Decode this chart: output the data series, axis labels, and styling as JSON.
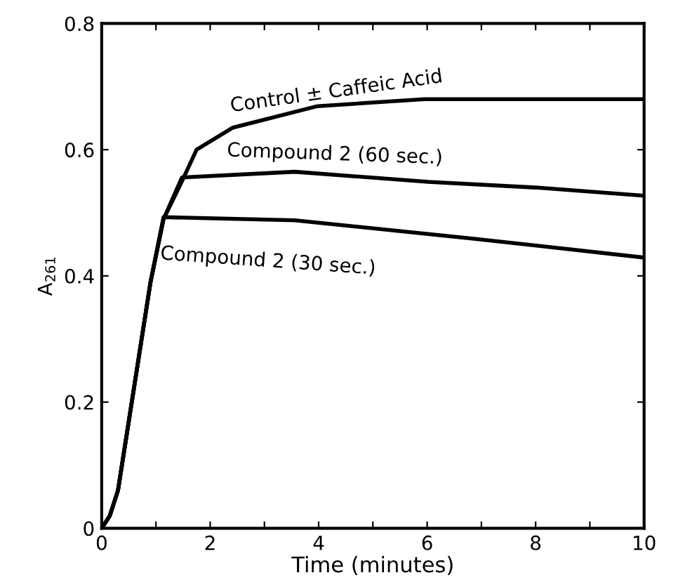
{
  "chart_data": {
    "type": "line",
    "xlabel": "Time (minutes)",
    "ylabel": "A$_{261}$",
    "xlim": [
      0,
      10
    ],
    "ylim": [
      0,
      0.8
    ],
    "xticks": [
      0,
      {
        "value": 1,
        "label": null
      },
      2,
      {
        "value": 3,
        "label": null
      },
      4,
      {
        "value": 5,
        "label": null
      },
      6,
      {
        "value": 7,
        "label": null
      },
      8,
      {
        "value": 9,
        "label": null
      },
      10
    ],
    "yticks": [
      0,
      0.2,
      0.4,
      0.6,
      0.8
    ],
    "grid": false,
    "marker": "none",
    "line_style": "solid",
    "series": [
      {
        "name": "Control ± Caffeic Acid",
        "color": "#000000",
        "x": [
          0,
          0.15,
          0.3,
          0.9,
          1.14,
          1.48,
          1.75,
          2.42,
          3.98,
          5.95,
          10
        ],
        "values": [
          0,
          0.02,
          0.06,
          0.39,
          0.49,
          0.55,
          0.6,
          0.635,
          0.669,
          0.68,
          0.68
        ]
      },
      {
        "name": "Compound 2 (60 sec.)",
        "color": "#000000",
        "x": [
          0,
          0.15,
          0.3,
          0.9,
          1.14,
          1.48,
          3.56,
          6.02,
          8,
          10
        ],
        "values": [
          0,
          0.02,
          0.06,
          0.39,
          0.49,
          0.556,
          0.565,
          0.549,
          0.54,
          0.527
        ]
      },
      {
        "name": "Compound 2 (30 sec.)",
        "color": "#000000",
        "x": [
          0,
          0.15,
          0.3,
          0.9,
          1.14,
          3.56,
          6.86,
          10
        ],
        "values": [
          0,
          0.02,
          0.06,
          0.39,
          0.493,
          0.488,
          0.459,
          0.429
        ]
      }
    ]
  }
}
